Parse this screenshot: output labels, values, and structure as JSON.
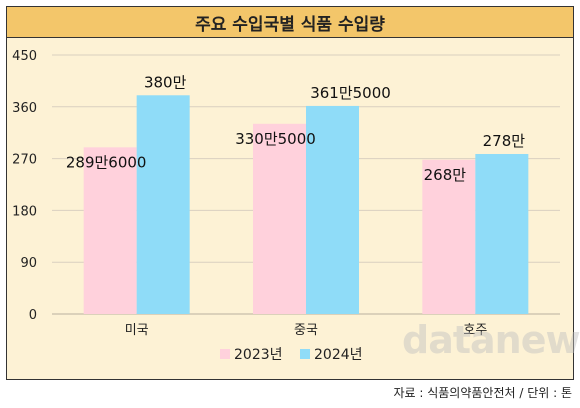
{
  "title": "주요 수입국별 식품 수입량",
  "source": "자료 : 식품의약품안전처 / 단위 : 톤",
  "watermark": "datanews",
  "colors": {
    "series_2023": "#ffd1dc",
    "series_2024": "#8fdcf8",
    "title_bg": "#f3c66a",
    "panel_bg": "#fdf2d5"
  },
  "chart_data": {
    "type": "bar",
    "title": "주요 수입국별 식품 수입량",
    "categories": [
      "미국",
      "중국",
      "호주"
    ],
    "series": [
      {
        "name": "2023년",
        "values": [
          2896000,
          3305000,
          2680000
        ],
        "labels": [
          "289만6000",
          "330만5000",
          "268만"
        ]
      },
      {
        "name": "2024년",
        "values": [
          3800000,
          3615000,
          2780000
        ],
        "labels": [
          "380만",
          "361만5000",
          "278만"
        ]
      }
    ],
    "yticks": [
      "0",
      "90",
      "180",
      "270",
      "360",
      "450"
    ],
    "ylim": [
      0,
      4500000
    ],
    "unit": "톤",
    "grid": true,
    "legend": "bottom"
  }
}
